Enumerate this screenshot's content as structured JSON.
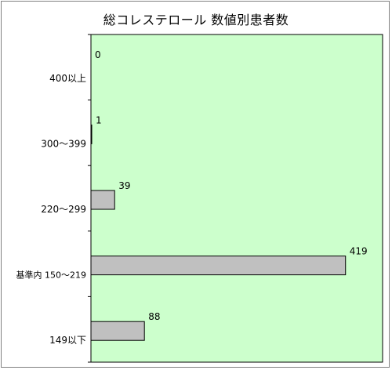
{
  "chart_data": {
    "type": "bar",
    "orientation": "horizontal",
    "title": "総コレステロール 数値別患者数",
    "categories": [
      "400以上",
      "300～399",
      "220～299",
      "基準内 150～219",
      "149以下"
    ],
    "values": [
      0,
      1,
      39,
      419,
      88
    ],
    "xlim": [
      0,
      480
    ],
    "grid": false,
    "legend": "none"
  },
  "colors": {
    "plot_background": "#ccffcc",
    "bar_fill": "#c0c0c0",
    "bar_stroke": "#000000",
    "frame": "#808080"
  }
}
